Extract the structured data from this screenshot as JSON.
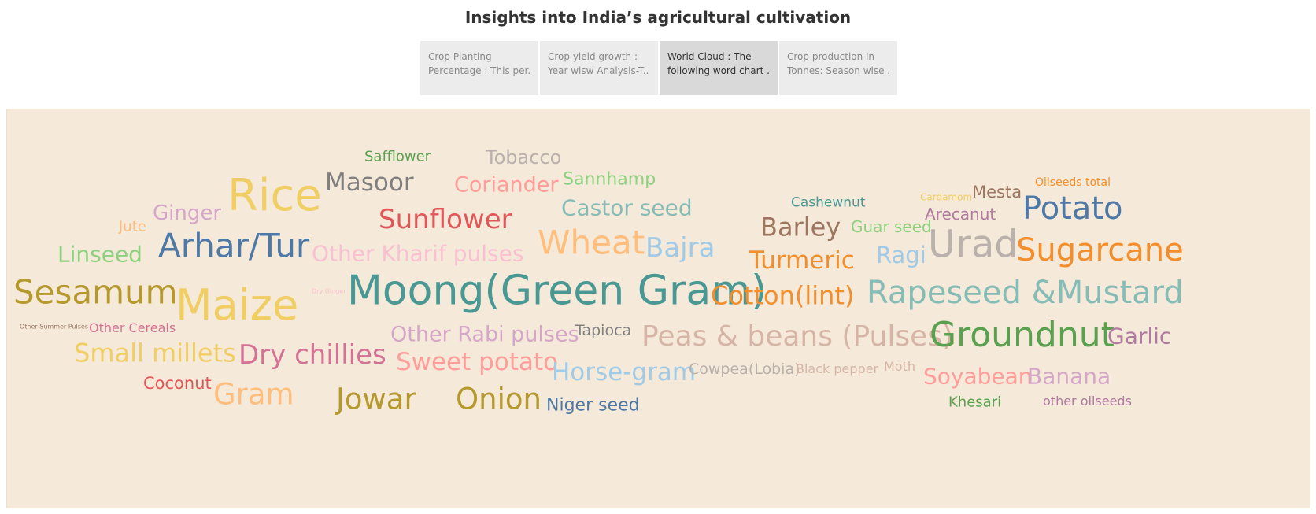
{
  "title": "Insights into India’s agricultural cultivation",
  "tabs": [
    {
      "line1": "Crop Planting",
      "line2": "Percentage : This per..",
      "active": false
    },
    {
      "line1": "Crop yield growth :",
      "line2": "Year wisw Analysis-T..",
      "active": false
    },
    {
      "line1": "World Cloud : The",
      "line2": "following word chart ..",
      "active": true
    },
    {
      "line1": "Crop production in",
      "line2": "Tonnes: Season wise ..",
      "active": false
    }
  ],
  "chart_data": {
    "type": "wordcloud",
    "words": [
      {
        "text": "Safflower",
        "color": "#59a14f"
      },
      {
        "text": "Tobacco",
        "color": "#bab0ac"
      },
      {
        "text": "Masoor",
        "color": "#7f7f7f"
      },
      {
        "text": "Coriander",
        "color": "#ff9d9a"
      },
      {
        "text": "Sannhamp",
        "color": "#8cd17d"
      },
      {
        "text": "Rice",
        "color": "#f1ce63"
      },
      {
        "text": "Ginger",
        "color": "#d4a6c8"
      },
      {
        "text": "Sunflower",
        "color": "#e15759"
      },
      {
        "text": "Castor seed",
        "color": "#86bcb6"
      },
      {
        "text": "Cashewnut",
        "color": "#499894"
      },
      {
        "text": "Cardamom",
        "color": "#f1ce63"
      },
      {
        "text": "Mesta",
        "color": "#9d7660"
      },
      {
        "text": "Oilseeds total",
        "color": "#f28e2b"
      },
      {
        "text": "Potato",
        "color": "#4e79a7"
      },
      {
        "text": "Arecanut",
        "color": "#b07aa1"
      },
      {
        "text": "Jute",
        "color": "#ffbe7d"
      },
      {
        "text": "Barley",
        "color": "#9d7660"
      },
      {
        "text": "Guar seed",
        "color": "#8cd17d"
      },
      {
        "text": "Linseed",
        "color": "#8cd17d"
      },
      {
        "text": "Arhar/Tur",
        "color": "#4e79a7"
      },
      {
        "text": "Other Kharif pulses",
        "color": "#fabfd2"
      },
      {
        "text": "Wheat",
        "color": "#ffbe7d"
      },
      {
        "text": "Bajra",
        "color": "#a0cbe8"
      },
      {
        "text": "Turmeric",
        "color": "#f28e2b"
      },
      {
        "text": "Ragi",
        "color": "#a0cbe8"
      },
      {
        "text": "Urad",
        "color": "#bab0ac"
      },
      {
        "text": "Sugarcane",
        "color": "#f28e2b"
      },
      {
        "text": "Sesamum",
        "color": "#b6992d"
      },
      {
        "text": "Dry Ginger",
        "color": "#fabfd2"
      },
      {
        "text": "Maize",
        "color": "#f1ce63"
      },
      {
        "text": "Moong(Green Gram)",
        "color": "#499894"
      },
      {
        "text": "Cotton(lint)",
        "color": "#f28e2b"
      },
      {
        "text": "Rapeseed &Mustard",
        "color": "#86bcb6"
      },
      {
        "text": "Other Summer Pulses",
        "color": "#9d7660"
      },
      {
        "text": "Other Cereals",
        "color": "#d37295"
      },
      {
        "text": "Other Rabi pulses",
        "color": "#d4a6c8"
      },
      {
        "text": "Tapioca",
        "color": "#7f7f7f"
      },
      {
        "text": "Peas & beans (Pulses)",
        "color": "#d7b5a6"
      },
      {
        "text": "Groundnut",
        "color": "#59a14f"
      },
      {
        "text": "Garlic",
        "color": "#b07aa1"
      },
      {
        "text": "Small millets",
        "color": "#f1ce63"
      },
      {
        "text": "Dry chillies",
        "color": "#d37295"
      },
      {
        "text": "Sweet potato",
        "color": "#ff9d9a"
      },
      {
        "text": "Horse-gram",
        "color": "#a0cbe8"
      },
      {
        "text": "Cowpea(Lobia)",
        "color": "#bab0ac"
      },
      {
        "text": "Black pepper",
        "color": "#d7b5a6"
      },
      {
        "text": "Moth",
        "color": "#d7b5a6"
      },
      {
        "text": "Soyabean",
        "color": "#ff9d9a"
      },
      {
        "text": "Banana",
        "color": "#d4a6c8"
      },
      {
        "text": "Coconut",
        "color": "#e15759"
      },
      {
        "text": "Gram",
        "color": "#ffbe7d"
      },
      {
        "text": "Jowar",
        "color": "#b6992d"
      },
      {
        "text": "Onion",
        "color": "#b6992d"
      },
      {
        "text": "Niger seed",
        "color": "#4e79a7"
      },
      {
        "text": "Khesari",
        "color": "#59a14f"
      },
      {
        "text": "other oilseeds",
        "color": "#b07aa1"
      }
    ]
  }
}
